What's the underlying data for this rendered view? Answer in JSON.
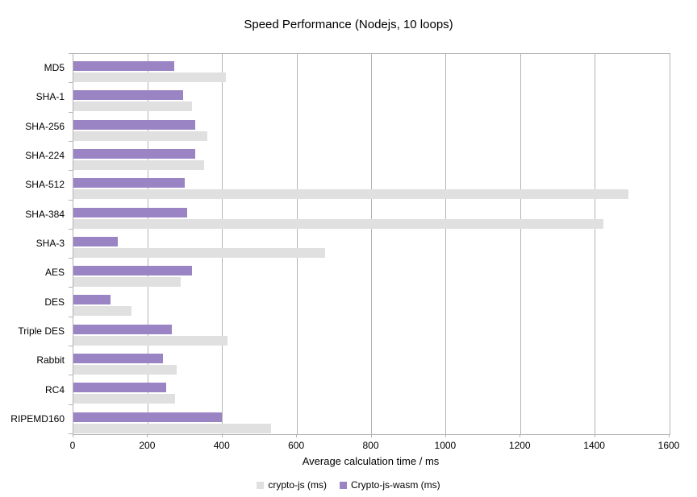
{
  "chart_data": {
    "type": "bar",
    "orientation": "horizontal",
    "title": "Speed Performance (Nodejs, 10 loops)",
    "xlabel": "Average calculation time / ms",
    "xlim": [
      0,
      1600
    ],
    "xticks": [
      0,
      200,
      400,
      600,
      800,
      1000,
      1200,
      1400,
      1600
    ],
    "grid": "vertical",
    "legend_position": "bottom",
    "categories": [
      "MD5",
      "SHA-1",
      "SHA-256",
      "SHA-224",
      "SHA-512",
      "SHA-384",
      "SHA-3",
      "AES",
      "DES",
      "Triple DES",
      "Rabbit",
      "RC4",
      "RIPEMD160"
    ],
    "series": [
      {
        "name": "crypto-js (ms)",
        "color": "#e0e0e0",
        "values": [
          410,
          318,
          360,
          350,
          1490,
          1422,
          676,
          289,
          155,
          414,
          277,
          273,
          530
        ]
      },
      {
        "name": "Crypto-js-wasm (ms)",
        "color": "#9a84c4",
        "values": [
          270,
          295,
          326,
          326,
          298,
          306,
          118,
          318,
          100,
          264,
          241,
          249,
          398
        ]
      }
    ],
    "colors": {
      "axis": "#b3b3b3",
      "gridline": "#b3b3b3",
      "text": "#000000",
      "background": "#ffffff"
    }
  }
}
